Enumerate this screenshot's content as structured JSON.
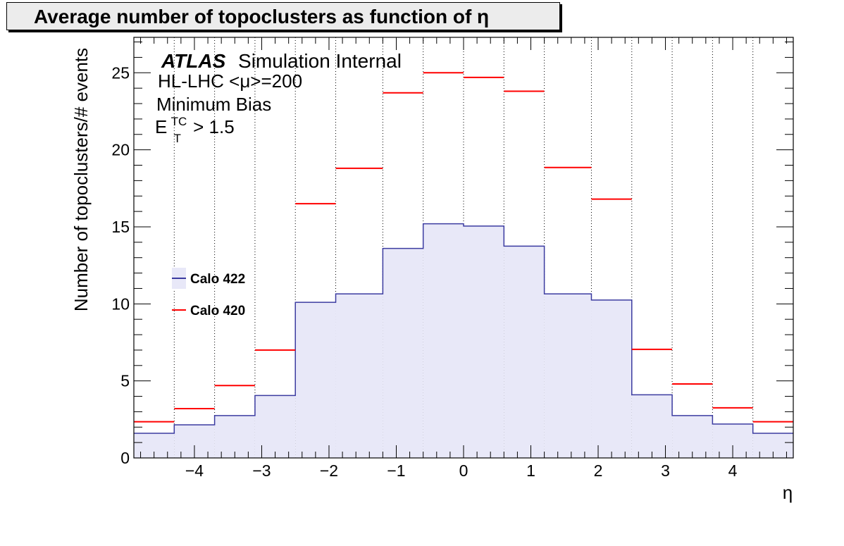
{
  "chart_data": {
    "type": "bar",
    "title": "Average number of topoclusters as function of η",
    "xlabel": "η",
    "ylabel": "Number of topoclusters/# events",
    "xlim": [
      -4.9,
      4.9
    ],
    "ylim": [
      0,
      27.3
    ],
    "grid": "vertical dotted lines at bin edges",
    "legend_position": "left-middle",
    "xticks": [
      "−4",
      "−3",
      "−2",
      "−1",
      "0",
      "1",
      "2",
      "3",
      "4"
    ],
    "xtick_values": [
      -4,
      -3,
      -2,
      -1,
      0,
      1,
      2,
      3,
      4
    ],
    "yticks": [
      "0",
      "5",
      "10",
      "15",
      "20",
      "25"
    ],
    "ytick_values": [
      0,
      5,
      10,
      15,
      20,
      25
    ],
    "bin_edges": [
      -4.9,
      -4.3,
      -3.7,
      -3.1,
      -2.5,
      -1.9,
      -1.2,
      -0.6,
      0,
      0.6,
      1.2,
      1.9,
      2.5,
      3.1,
      3.7,
      4.3,
      4.9
    ],
    "series": [
      {
        "name": "Calo 422",
        "color": "#3b3ba0",
        "fill": "#e8e8f8",
        "style": "filled histogram",
        "values": [
          1.6,
          2.15,
          2.75,
          4.05,
          10.1,
          10.65,
          13.6,
          15.2,
          15.05,
          13.75,
          10.65,
          10.25,
          4.1,
          2.75,
          2.2,
          1.6
        ]
      },
      {
        "name": "Calo 420",
        "color": "#ff0000",
        "style": "horizontal markers",
        "values": [
          2.35,
          3.2,
          4.7,
          7.0,
          16.5,
          18.8,
          23.7,
          25.0,
          24.7,
          23.8,
          18.85,
          16.8,
          7.05,
          4.8,
          3.25,
          2.35
        ]
      }
    ],
    "annotations": {
      "atlas": "ATLAS",
      "atlas_suffix": "Simulation Internal",
      "line2": "HL-LHC <μ>=200",
      "line3": "Minimum Bias",
      "line4_base": "E",
      "line4_sup": "TC",
      "line4_sub": "T",
      "line4_rest": "> 1.5"
    }
  }
}
